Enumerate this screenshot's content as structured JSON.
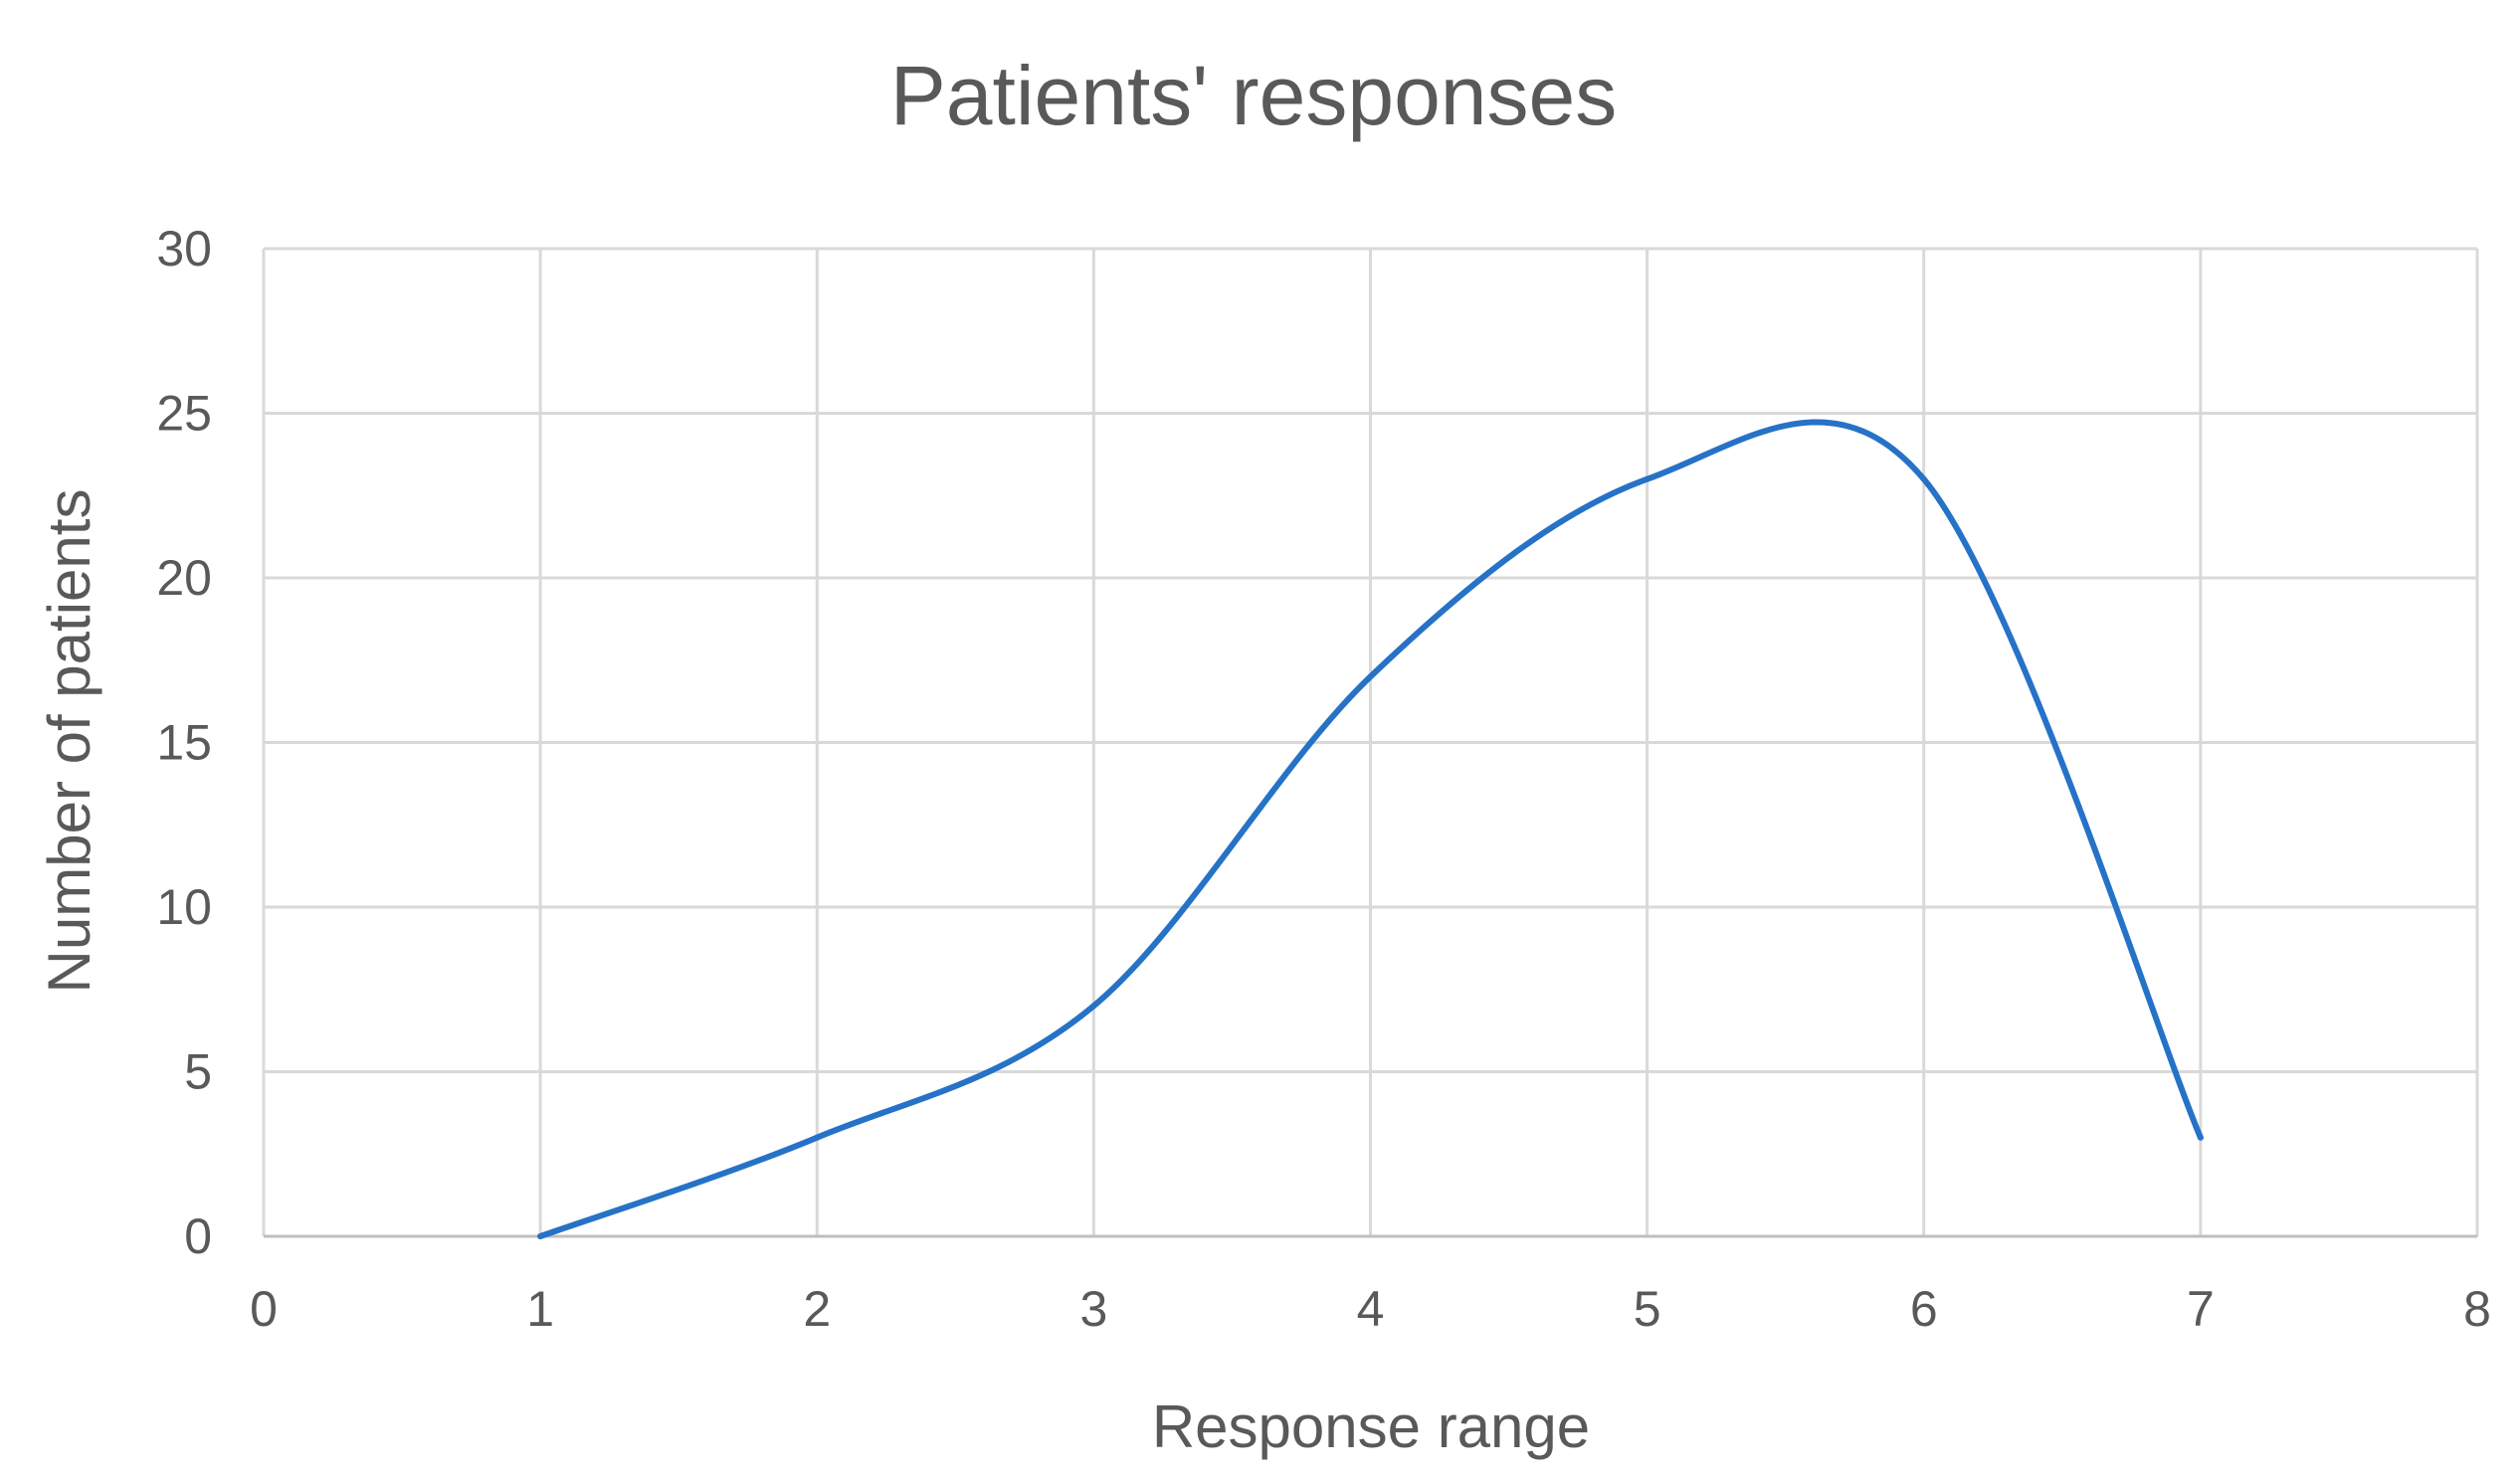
{
  "chart_data": {
    "type": "line",
    "title": "Patients' responses",
    "xlabel": "Response range",
    "ylabel": "Number of patients",
    "xlim": [
      0,
      8
    ],
    "ylim": [
      0,
      30
    ],
    "x_ticks": [
      0,
      1,
      2,
      3,
      4,
      5,
      6,
      7,
      8
    ],
    "y_ticks": [
      0,
      5,
      10,
      15,
      20,
      25,
      30
    ],
    "grid": true,
    "smooth": true,
    "legend": "none",
    "series": [
      {
        "color": "#2672c7",
        "x": [
          1,
          2,
          3,
          4,
          5,
          6,
          7
        ],
        "y": [
          0,
          3,
          7,
          17,
          23,
          23,
          3
        ]
      }
    ]
  }
}
